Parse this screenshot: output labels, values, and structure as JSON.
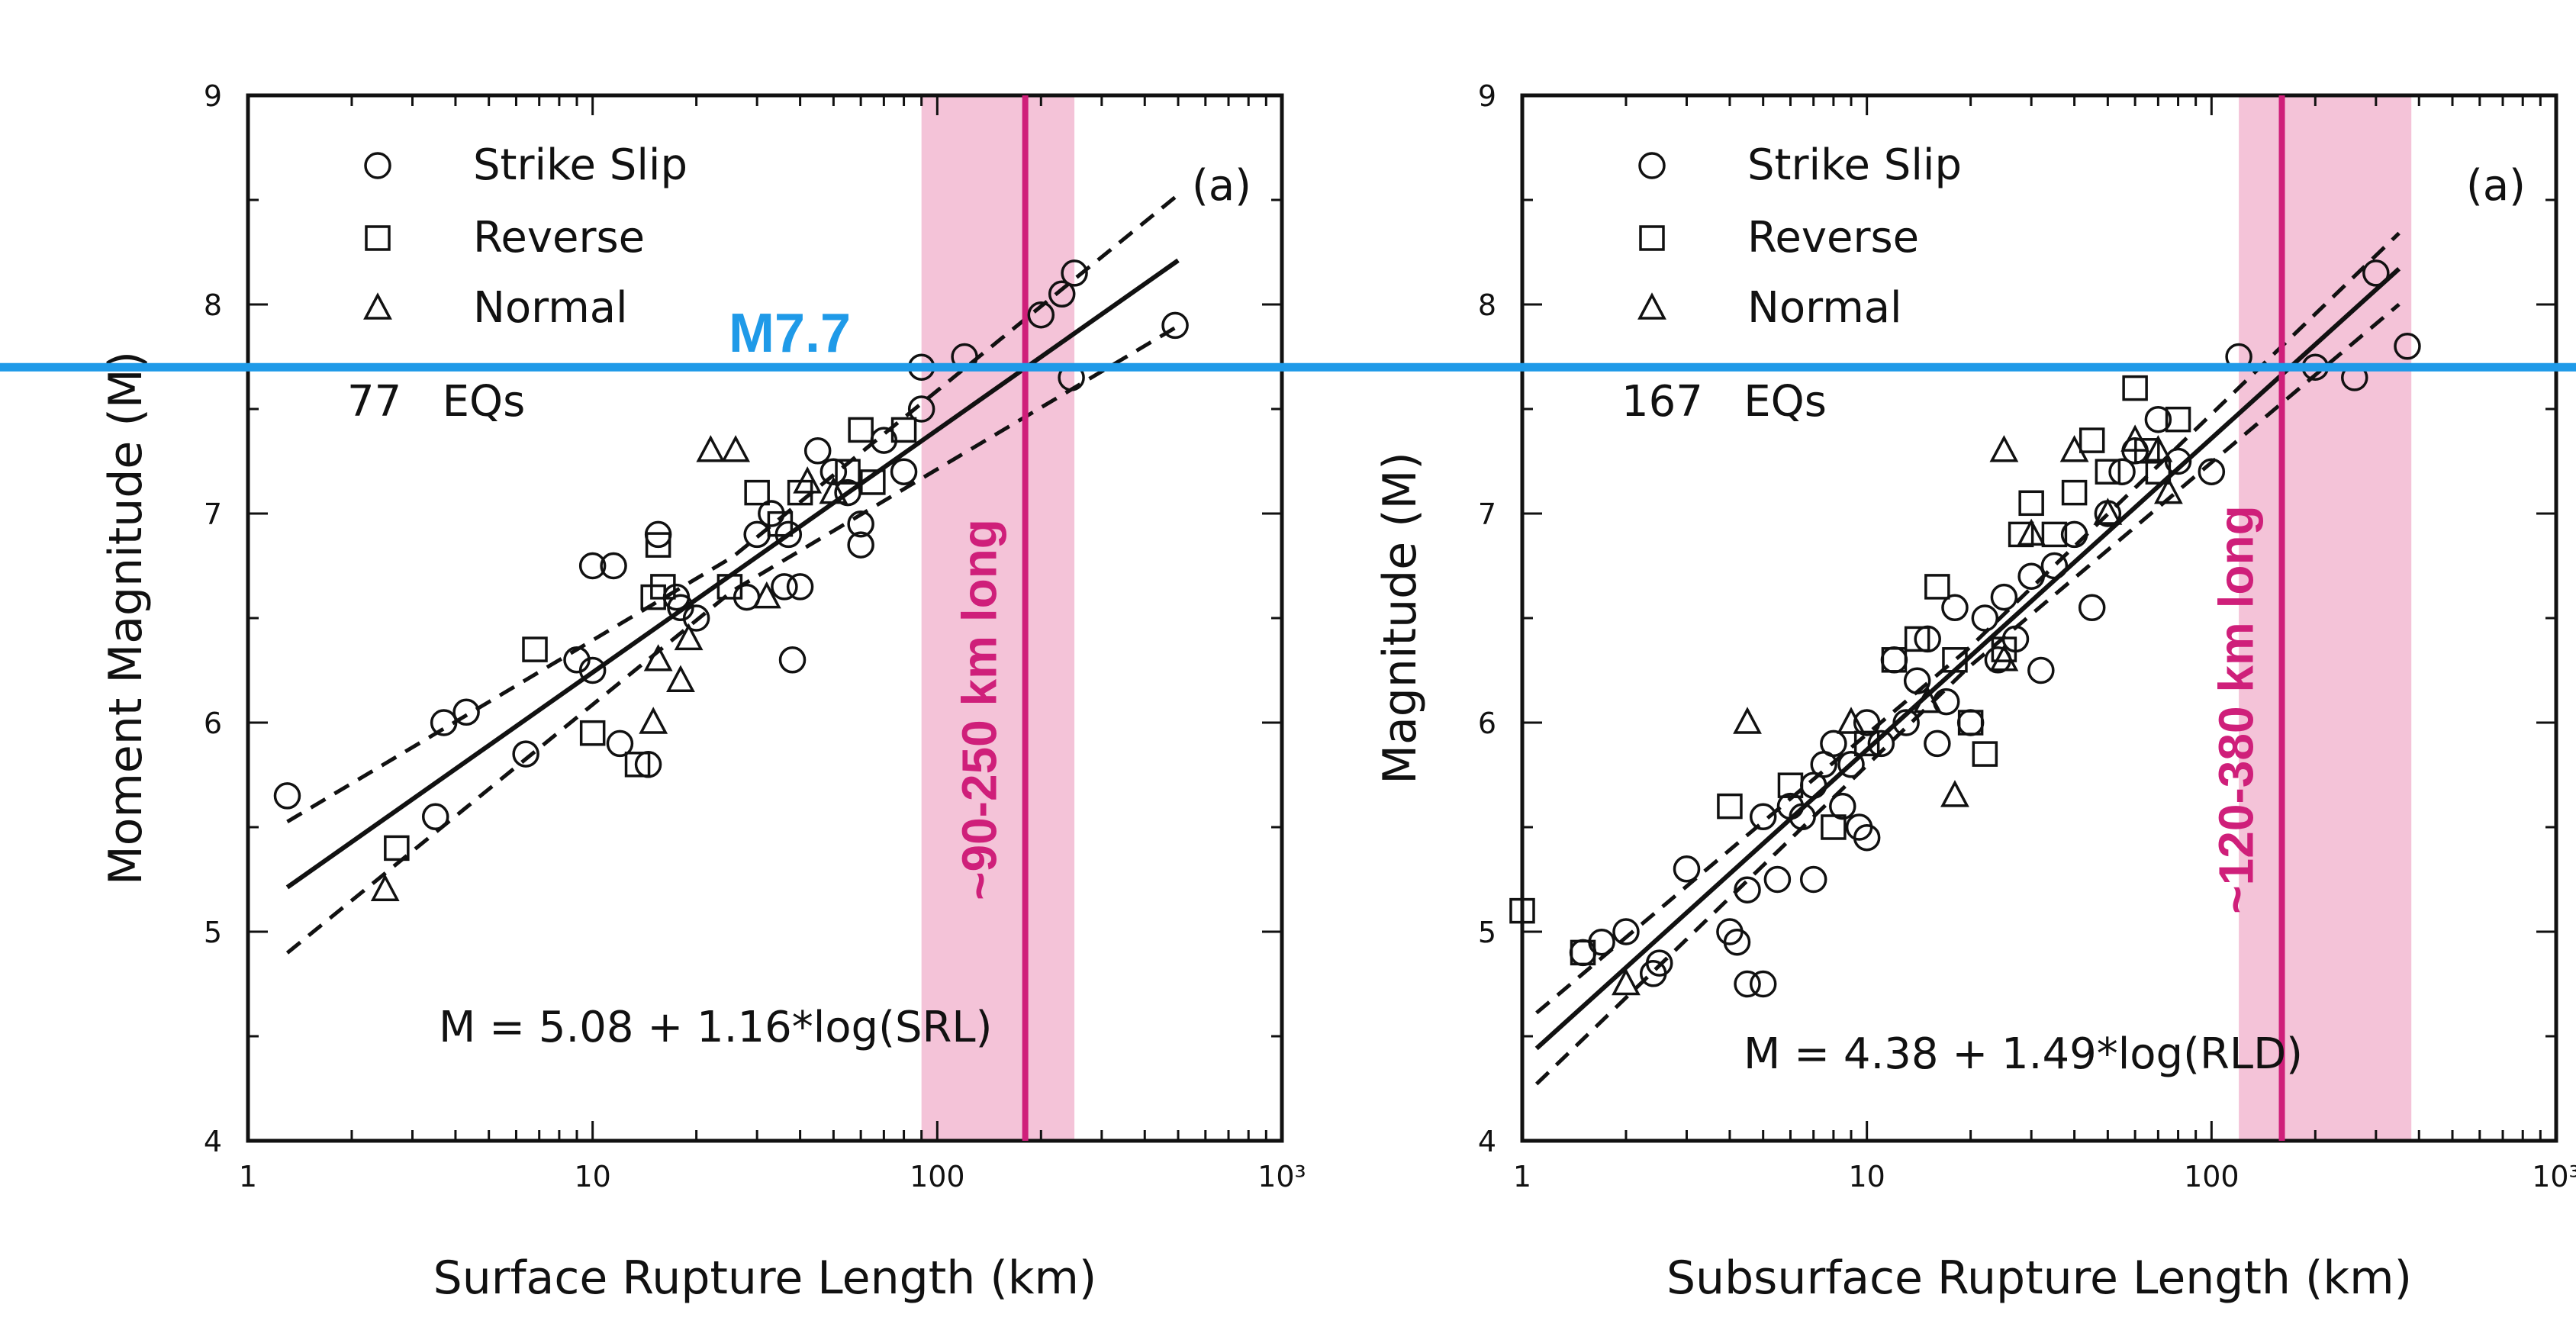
{
  "chart_data": [
    {
      "type": "scatter",
      "panel_label": "(a)",
      "xscale": "log",
      "xlim": [
        1,
        1000
      ],
      "ylim": [
        4,
        9
      ],
      "xticks": [
        "1",
        "10",
        "100",
        "10³"
      ],
      "yticks": [
        "4",
        "5",
        "6",
        "7",
        "8",
        "9"
      ],
      "xlabel": "Surface Rupture Length (km)",
      "ylabel": "Moment Magnitude (M)",
      "count_label": "77   EQs",
      "equation": "M = 5.08 + 1.16*log(SRL)",
      "fit": {
        "a": 5.08,
        "b": 1.16,
        "band": 0.18
      },
      "legend": [
        "Strike Slip",
        "Reverse",
        "Normal"
      ],
      "highlight": {
        "label": "~90-250 km long",
        "range": [
          90,
          250
        ],
        "center": 180
      },
      "series": [
        {
          "name": "Strike Slip",
          "marker": "circle",
          "points": [
            [
              1.3,
              5.65
            ],
            [
              3.5,
              5.55
            ],
            [
              3.7,
              6.0
            ],
            [
              4.3,
              6.05
            ],
            [
              6.4,
              5.85
            ],
            [
              9.0,
              6.3
            ],
            [
              10.0,
              6.25
            ],
            [
              10.0,
              6.75
            ],
            [
              11.5,
              6.75
            ],
            [
              12.0,
              5.9
            ],
            [
              14.5,
              5.8
            ],
            [
              15.5,
              6.9
            ],
            [
              17.5,
              6.6
            ],
            [
              18.0,
              6.55
            ],
            [
              20.0,
              6.5
            ],
            [
              28.0,
              6.6
            ],
            [
              30.0,
              6.9
            ],
            [
              33.0,
              7.0
            ],
            [
              36.0,
              6.65
            ],
            [
              37.0,
              6.9
            ],
            [
              38.0,
              6.3
            ],
            [
              40.0,
              6.65
            ],
            [
              45.0,
              7.3
            ],
            [
              50.0,
              7.2
            ],
            [
              55.0,
              7.1
            ],
            [
              60.0,
              6.95
            ],
            [
              60.0,
              6.85
            ],
            [
              70.0,
              7.35
            ],
            [
              80.0,
              7.2
            ],
            [
              90.0,
              7.5
            ],
            [
              90.0,
              7.7
            ],
            [
              120.0,
              7.75
            ],
            [
              200.0,
              7.95
            ],
            [
              230.0,
              8.05
            ],
            [
              250.0,
              8.15
            ],
            [
              245.0,
              7.65
            ],
            [
              490.0,
              7.9
            ]
          ]
        },
        {
          "name": "Reverse",
          "marker": "square",
          "points": [
            [
              2.7,
              5.4
            ],
            [
              6.8,
              6.35
            ],
            [
              10.0,
              5.95
            ],
            [
              13.5,
              5.8
            ],
            [
              15.0,
              6.6
            ],
            [
              15.5,
              6.85
            ],
            [
              16.0,
              6.65
            ],
            [
              25.0,
              6.65
            ],
            [
              30.0,
              7.1
            ],
            [
              35.0,
              6.95
            ],
            [
              40.0,
              7.1
            ],
            [
              55.0,
              7.2
            ],
            [
              60.0,
              7.4
            ],
            [
              65.0,
              7.15
            ],
            [
              80.0,
              7.4
            ]
          ]
        },
        {
          "name": "Normal",
          "marker": "triangle",
          "points": [
            [
              2.5,
              5.2
            ],
            [
              15.0,
              6.0
            ],
            [
              15.5,
              6.3
            ],
            [
              18.0,
              6.2
            ],
            [
              19.0,
              6.4
            ],
            [
              22.0,
              7.3
            ],
            [
              26.0,
              7.3
            ],
            [
              32.0,
              6.6
            ],
            [
              42.0,
              7.15
            ],
            [
              50.0,
              7.1
            ]
          ]
        }
      ]
    },
    {
      "type": "scatter",
      "panel_label": "(a)",
      "xscale": "log",
      "xlim": [
        1,
        1000
      ],
      "ylim": [
        4,
        9
      ],
      "xticks": [
        "1",
        "10",
        "100",
        "10³"
      ],
      "yticks": [
        "4",
        "5",
        "6",
        "7",
        "8",
        "9"
      ],
      "xlabel": "Subsurface Rupture Length (km)",
      "ylabel": "Magnitude (M)",
      "count_label": "167   EQs",
      "equation": "M = 4.38 + 1.49*log(RLD)",
      "fit": {
        "a": 4.38,
        "b": 1.49,
        "band": 0.1
      },
      "legend": [
        "Strike Slip",
        "Reverse",
        "Normal"
      ],
      "highlight": {
        "label": "~120-380 km long",
        "range": [
          120,
          380
        ],
        "center": 160
      },
      "series": [
        {
          "name": "Strike Slip",
          "marker": "circle",
          "points": [
            [
              1.5,
              4.9
            ],
            [
              1.7,
              4.95
            ],
            [
              2.0,
              5.0
            ],
            [
              2.4,
              4.8
            ],
            [
              2.5,
              4.85
            ],
            [
              3.0,
              5.3
            ],
            [
              4.0,
              5.0
            ],
            [
              4.2,
              4.95
            ],
            [
              4.5,
              4.75
            ],
            [
              5.0,
              4.75
            ],
            [
              4.5,
              5.2
            ],
            [
              5.0,
              5.55
            ],
            [
              5.5,
              5.25
            ],
            [
              6.0,
              5.6
            ],
            [
              6.5,
              5.55
            ],
            [
              7.0,
              5.25
            ],
            [
              7.0,
              5.7
            ],
            [
              7.5,
              5.8
            ],
            [
              8.0,
              5.9
            ],
            [
              8.5,
              5.6
            ],
            [
              9.0,
              5.8
            ],
            [
              9.5,
              5.5
            ],
            [
              10.0,
              5.45
            ],
            [
              10.0,
              6.0
            ],
            [
              11.0,
              5.9
            ],
            [
              12.0,
              6.3
            ],
            [
              13.0,
              6.0
            ],
            [
              14.0,
              6.2
            ],
            [
              15.0,
              6.4
            ],
            [
              16.0,
              5.9
            ],
            [
              17.0,
              6.1
            ],
            [
              18.0,
              6.55
            ],
            [
              20.0,
              6.0
            ],
            [
              22.0,
              6.5
            ],
            [
              24.0,
              6.3
            ],
            [
              25.0,
              6.6
            ],
            [
              27.0,
              6.4
            ],
            [
              30.0,
              6.7
            ],
            [
              32.0,
              6.25
            ],
            [
              35.0,
              6.75
            ],
            [
              40.0,
              6.9
            ],
            [
              45.0,
              6.55
            ],
            [
              50.0,
              7.0
            ],
            [
              55.0,
              7.2
            ],
            [
              60.0,
              7.3
            ],
            [
              70.0,
              7.45
            ],
            [
              80.0,
              7.25
            ],
            [
              100.0,
              7.2
            ],
            [
              120.0,
              7.75
            ],
            [
              200.0,
              7.7
            ],
            [
              260.0,
              7.65
            ],
            [
              300.0,
              8.15
            ],
            [
              370.0,
              7.8
            ]
          ]
        },
        {
          "name": "Reverse",
          "marker": "square",
          "points": [
            [
              1.0,
              5.1
            ],
            [
              1.5,
              4.9
            ],
            [
              4.0,
              5.6
            ],
            [
              6.0,
              5.7
            ],
            [
              8.0,
              5.5
            ],
            [
              10.0,
              5.9
            ],
            [
              12.0,
              6.3
            ],
            [
              14.0,
              6.4
            ],
            [
              16.0,
              6.65
            ],
            [
              18.0,
              6.3
            ],
            [
              20.0,
              6.0
            ],
            [
              22.0,
              5.85
            ],
            [
              25.0,
              6.35
            ],
            [
              28.0,
              6.9
            ],
            [
              30.0,
              7.05
            ],
            [
              35.0,
              6.9
            ],
            [
              40.0,
              7.1
            ],
            [
              45.0,
              7.35
            ],
            [
              50.0,
              7.2
            ],
            [
              60.0,
              7.6
            ],
            [
              65.0,
              7.3
            ],
            [
              70.0,
              7.2
            ],
            [
              80.0,
              7.45
            ]
          ]
        },
        {
          "name": "Normal",
          "marker": "triangle",
          "points": [
            [
              2.0,
              4.75
            ],
            [
              4.5,
              6.0
            ],
            [
              9.0,
              6.0
            ],
            [
              15.0,
              6.1
            ],
            [
              18.0,
              5.65
            ],
            [
              25.0,
              6.3
            ],
            [
              25.0,
              7.3
            ],
            [
              30.0,
              6.9
            ],
            [
              40.0,
              7.3
            ],
            [
              50.0,
              7.0
            ],
            [
              60.0,
              7.35
            ],
            [
              70.0,
              7.3
            ],
            [
              75.0,
              7.1
            ]
          ]
        }
      ]
    }
  ],
  "overlay": {
    "label": "M7.7",
    "magnitude": 7.7,
    "line_color": "#1f9ae8",
    "highlight_color": "#f4c3d8",
    "center_line_color": "#cf1f7a"
  }
}
